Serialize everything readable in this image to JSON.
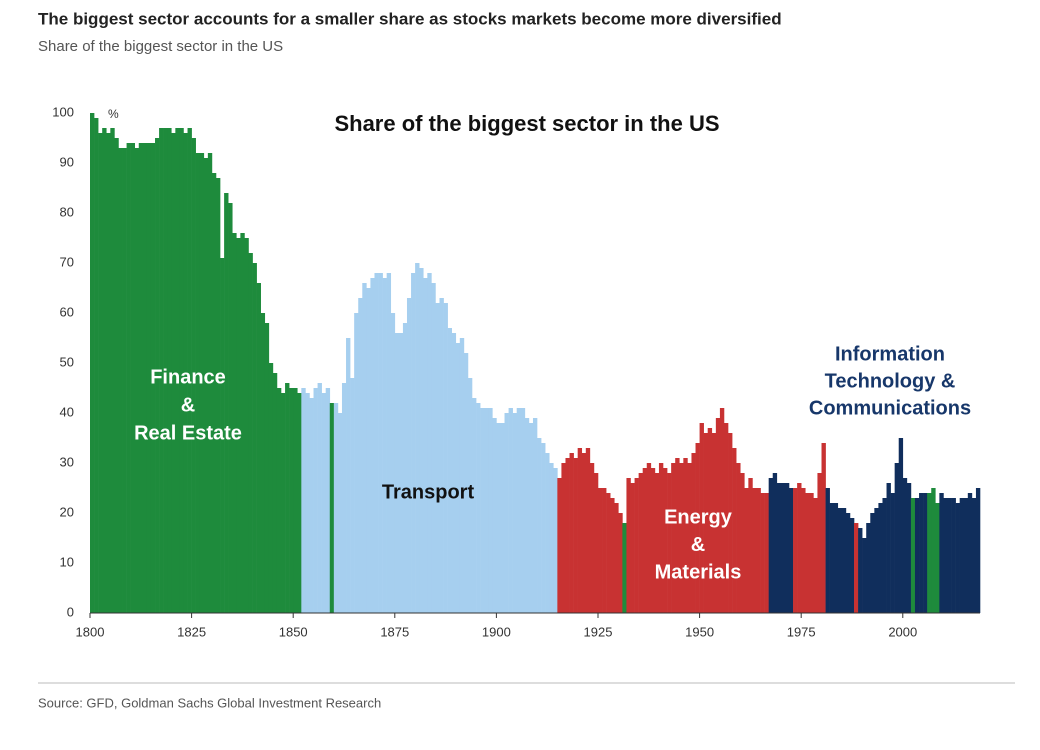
{
  "chart_data": {
    "type": "bar",
    "title": "The biggest sector accounts for a smaller share as stocks markets become more diversified",
    "subtitle": "Share of the biggest sector in the US",
    "plot_title": "Share of the biggest sector in the US",
    "y_unit": "%",
    "source": "Source: GFD, Goldman Sachs Global Investment Research",
    "xlim": [
      1800,
      2019
    ],
    "ylim": [
      0,
      100
    ],
    "xticks": [
      1800,
      1825,
      1850,
      1875,
      1900,
      1925,
      1950,
      1975,
      2000
    ],
    "yticks": [
      0,
      10,
      20,
      30,
      40,
      50,
      60,
      70,
      80,
      90,
      100
    ],
    "annotations": [
      {
        "lines": [
          "Finance",
          "&",
          "Real Estate"
        ],
        "color": "#ffffff"
      },
      {
        "lines": [
          "Transport"
        ],
        "color": "#111111"
      },
      {
        "lines": [
          "Energy",
          "&",
          "Materials"
        ],
        "color": "#ffffff"
      },
      {
        "lines": [
          "Information",
          "Technology &",
          "Communications"
        ],
        "color": "#17376a"
      }
    ],
    "series": [
      {
        "color": "#1e8b3c",
        "x": [
          1800,
          1801,
          1802,
          1803,
          1804,
          1805,
          1806,
          1807,
          1808,
          1809,
          1810,
          1811,
          1812,
          1813,
          1814,
          1815,
          1816,
          1817,
          1818,
          1819,
          1820,
          1821,
          1822,
          1823,
          1824,
          1825,
          1826,
          1827,
          1828,
          1829,
          1830,
          1831,
          1832,
          1833,
          1834,
          1835,
          1836,
          1837,
          1838,
          1839,
          1840,
          1841,
          1842,
          1843,
          1844,
          1845,
          1846,
          1847,
          1848,
          1849,
          1850,
          1851
        ],
        "values": [
          100,
          99,
          96,
          97,
          96,
          97,
          95,
          93,
          93,
          94,
          94,
          93,
          94,
          94,
          94,
          94,
          95,
          97,
          97,
          97,
          96,
          97,
          97,
          96,
          97,
          95,
          92,
          92,
          91,
          92,
          88,
          87,
          71,
          84,
          82,
          76,
          75,
          76,
          75,
          72,
          70,
          66,
          60,
          58,
          50,
          48,
          45,
          44,
          46,
          45,
          45,
          44
        ]
      },
      {
        "color": "#a6cfef",
        "x": [
          1852,
          1853,
          1854,
          1855,
          1856,
          1857,
          1858
        ],
        "values": [
          45,
          44,
          43,
          45,
          46,
          44,
          45
        ]
      },
      {
        "color": "#1e8b3c",
        "x": [
          1859
        ],
        "values": [
          42
        ]
      },
      {
        "color": "#a6cfef",
        "x": [
          1860,
          1861,
          1862,
          1863,
          1864,
          1865,
          1866,
          1867,
          1868,
          1869,
          1870,
          1871,
          1872,
          1873,
          1874,
          1875,
          1876,
          1877,
          1878,
          1879,
          1880,
          1881,
          1882,
          1883,
          1884,
          1885,
          1886,
          1887,
          1888,
          1889,
          1890,
          1891,
          1892,
          1893,
          1894,
          1895,
          1896,
          1897,
          1898,
          1899,
          1900,
          1901,
          1902,
          1903,
          1904,
          1905,
          1906,
          1907,
          1908,
          1909,
          1910,
          1911,
          1912,
          1913,
          1914
        ],
        "values": [
          42,
          40,
          46,
          55,
          47,
          60,
          63,
          66,
          65,
          67,
          68,
          68,
          67,
          68,
          60,
          56,
          56,
          58,
          63,
          68,
          70,
          69,
          67,
          68,
          66,
          62,
          63,
          62,
          57,
          56,
          54,
          55,
          52,
          47,
          43,
          42,
          41,
          41,
          41,
          39,
          38,
          38,
          40,
          41,
          40,
          41,
          41,
          39,
          38,
          39,
          35,
          34,
          32,
          30,
          29
        ]
      },
      {
        "color": "#c83232",
        "x": [
          1915,
          1916,
          1917,
          1918,
          1919,
          1920,
          1921,
          1922,
          1923,
          1924,
          1925,
          1926,
          1927,
          1928,
          1929,
          1930
        ],
        "values": [
          27,
          30,
          31,
          32,
          31,
          33,
          32,
          33,
          30,
          28,
          25,
          25,
          24,
          23,
          22,
          20
        ]
      },
      {
        "color": "#1e8b3c",
        "x": [
          1931
        ],
        "values": [
          18
        ]
      },
      {
        "color": "#c83232",
        "x": [
          1932,
          1933,
          1934,
          1935,
          1936,
          1937,
          1938,
          1939,
          1940,
          1941,
          1942,
          1943,
          1944,
          1945,
          1946,
          1947,
          1948,
          1949,
          1950,
          1951,
          1952,
          1953,
          1954,
          1955,
          1956,
          1957,
          1958,
          1959,
          1960,
          1961,
          1962,
          1963,
          1964,
          1965,
          1966
        ],
        "values": [
          27,
          26,
          27,
          28,
          29,
          30,
          29,
          28,
          30,
          29,
          28,
          30,
          31,
          30,
          31,
          30,
          32,
          34,
          38,
          36,
          37,
          36,
          39,
          41,
          38,
          36,
          33,
          30,
          28,
          25,
          27,
          25,
          25,
          24,
          24
        ]
      },
      {
        "color": "#102e5c",
        "x": [
          1967,
          1968,
          1969,
          1970,
          1971,
          1972
        ],
        "values": [
          27,
          28,
          26,
          26,
          26,
          25
        ]
      },
      {
        "color": "#c83232",
        "x": [
          1973,
          1974,
          1975,
          1976,
          1977,
          1978,
          1979,
          1980
        ],
        "values": [
          25,
          26,
          25,
          24,
          24,
          23,
          28,
          34
        ]
      },
      {
        "color": "#102e5c",
        "x": [
          1981,
          1982,
          1983,
          1984,
          1985,
          1986,
          1987
        ],
        "values": [
          25,
          22,
          22,
          21,
          21,
          20,
          19
        ]
      },
      {
        "color": "#c83232",
        "x": [
          1988
        ],
        "values": [
          18
        ]
      },
      {
        "color": "#102e5c",
        "x": [
          1989,
          1990,
          1991,
          1992,
          1993,
          1994,
          1995,
          1996,
          1997,
          1998,
          1999,
          2000,
          2001
        ],
        "values": [
          17,
          15,
          18,
          20,
          21,
          22,
          23,
          26,
          24,
          30,
          35,
          27,
          26
        ]
      },
      {
        "color": "#1e8b3c",
        "x": [
          2002
        ],
        "values": [
          23
        ]
      },
      {
        "color": "#102e5c",
        "x": [
          2003,
          2004,
          2005
        ],
        "values": [
          23,
          24,
          24
        ]
      },
      {
        "color": "#1e8b3c",
        "x": [
          2006,
          2007,
          2008
        ],
        "values": [
          24,
          25,
          22
        ]
      },
      {
        "color": "#102e5c",
        "x": [
          2009,
          2010,
          2011,
          2012,
          2013,
          2014,
          2015,
          2016,
          2017,
          2018
        ],
        "values": [
          24,
          23,
          23,
          23,
          22,
          23,
          23,
          24,
          23,
          25
        ]
      }
    ]
  }
}
